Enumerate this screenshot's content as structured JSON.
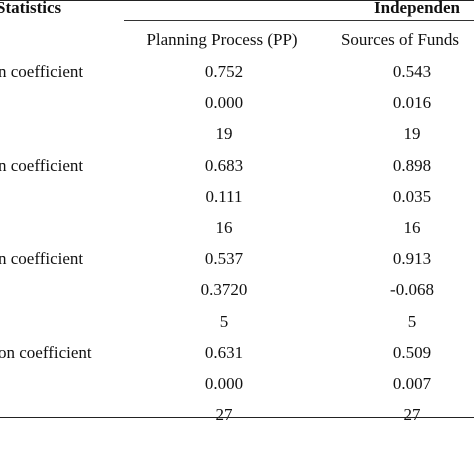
{
  "header": {
    "statistics": "Statistics",
    "independent": "Independen"
  },
  "columns": {
    "pp": "Planning Process (PP)",
    "sf": "Sources of Funds"
  },
  "rows": [
    {
      "label": "n coefficient",
      "pp": "0.752",
      "sf": "0.543"
    },
    {
      "label": "",
      "pp": "0.000",
      "sf": "0.016"
    },
    {
      "label": "",
      "pp": "19",
      "sf": "19"
    },
    {
      "label": "n coefficient",
      "pp": "0.683",
      "sf": "0.898"
    },
    {
      "label": "",
      "pp": "0.111",
      "sf": "0.035"
    },
    {
      "label": "",
      "pp": "16",
      "sf": "16"
    },
    {
      "label": "n coefficient",
      "pp": "0.537",
      "sf": "0.913"
    },
    {
      "label": "",
      "pp": "0.3720",
      "sf": "-0.068"
    },
    {
      "label": "",
      "pp": "5",
      "sf": "5"
    },
    {
      "label": "on coefficient",
      "pp": "0.631",
      "sf": "0.509"
    },
    {
      "label": "",
      "pp": "0.000",
      "sf": "0.007"
    },
    {
      "label": "",
      "pp": "27",
      "sf": "27"
    }
  ]
}
